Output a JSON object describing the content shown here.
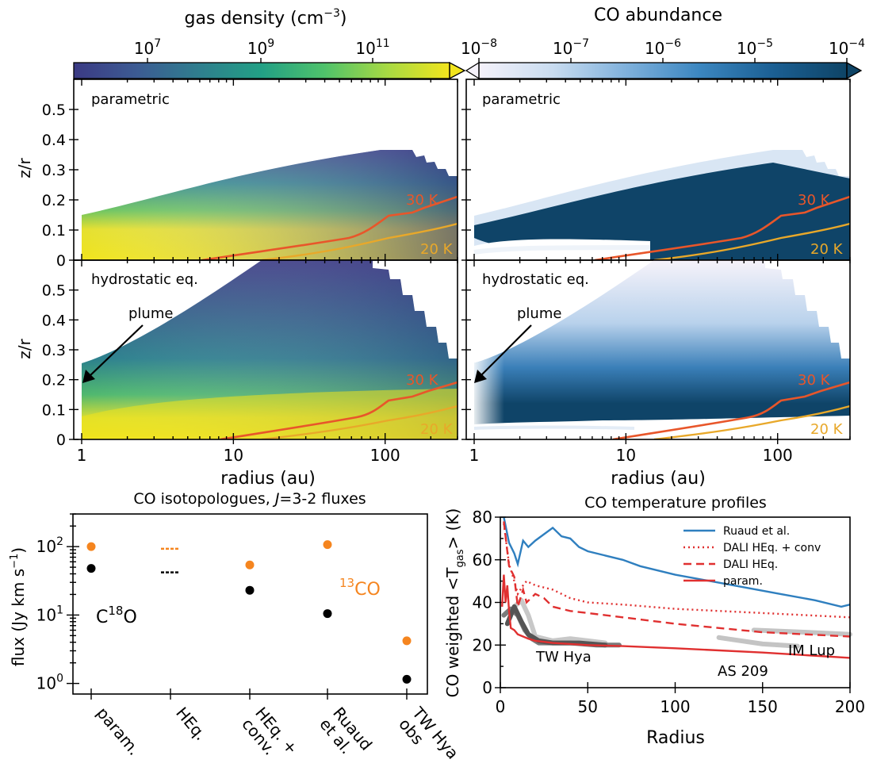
{
  "top_panels": {
    "colorbar_density": {
      "label": "gas density (cm",
      "label_sup": "−3",
      "label_close": ")",
      "ticks": [
        {
          "base": "10",
          "exp": "7"
        },
        {
          "base": "10",
          "exp": "9"
        },
        {
          "base": "10",
          "exp": "11"
        }
      ],
      "colormap": [
        "#3b3a84",
        "#3c5b93",
        "#2f7e8e",
        "#22a085",
        "#4fc26b",
        "#a7d943",
        "#f2e51d"
      ]
    },
    "colorbar_co": {
      "label": "CO abundance",
      "ticks": [
        {
          "base": "10",
          "exp": "−8"
        },
        {
          "base": "10",
          "exp": "−7"
        },
        {
          "base": "10",
          "exp": "−6"
        },
        {
          "base": "10",
          "exp": "−5"
        },
        {
          "base": "10",
          "exp": "−4"
        }
      ],
      "colormap": [
        "#f5f2fa",
        "#c9dcf0",
        "#7fb1dc",
        "#3b86c0",
        "#1b5f93",
        "#0e4466"
      ]
    },
    "panel_labels": [
      "parametric",
      "parametric",
      "hydrostatic eq.",
      "hydrostatic eq."
    ],
    "ylabel": "z/r",
    "xlabel": "radius (au)",
    "y_ticks": [
      "0",
      "0.1",
      "0.2",
      "0.3",
      "0.4",
      "0.5"
    ],
    "x_ticks": [
      "1",
      "10",
      "100"
    ],
    "contour_labels": [
      "30 K",
      "20 K"
    ],
    "annotation": "plume",
    "contour_colors": {
      "30 K": "#e8562a",
      "20 K": "#e8a82a"
    }
  },
  "chart_data": [
    {
      "type": "scatter",
      "title": "CO isotopologues, J=3-2 fluxes",
      "title_prefix": "CO isotopologues, ",
      "title_italic": "J",
      "title_suffix": "=3-2 fluxes",
      "ylabel": "flux (Jy km s",
      "ylabel_sup": "−1",
      "ylabel_close": ")",
      "yscale": "log",
      "ylim": [
        0.7,
        300
      ],
      "y_ticks": [
        {
          "base": "10",
          "exp": "0"
        },
        {
          "base": "10",
          "exp": "1"
        },
        {
          "base": "10",
          "exp": "2"
        }
      ],
      "categories": [
        "param.",
        "HEq.",
        "HEq.+\nconv.",
        "Ruaud\net al.",
        "TW Hya\nobs"
      ],
      "category_lines": [
        [
          "param."
        ],
        [
          "HEq."
        ],
        [
          "HEq. +",
          "conv."
        ],
        [
          "Ruaud",
          "et al."
        ],
        [
          "TW Hya",
          "obs"
        ]
      ],
      "series": [
        {
          "name": "13CO",
          "label_base": "CO",
          "label_sup": "13",
          "color": "#f5851f",
          "values": [
            100,
            93,
            54,
            107,
            4.2
          ]
        },
        {
          "name": "C18O",
          "label_base_pre": "C",
          "label_sup": "18",
          "label_base_post": "O",
          "color": "#000000",
          "values": [
            48,
            42,
            23,
            10.5,
            1.15
          ]
        }
      ]
    },
    {
      "type": "line",
      "title": "CO temperature profiles",
      "xlabel": "Radius",
      "ylabel": "CO weighted <T",
      "ylabel_sub": "gas",
      "ylabel_close": "> (K)",
      "xlim": [
        0,
        200
      ],
      "ylim": [
        0,
        80
      ],
      "x_ticks": [
        "0",
        "50",
        "100",
        "150",
        "200"
      ],
      "y_ticks": [
        "0",
        "20",
        "40",
        "60",
        "80"
      ],
      "legend_position": "top-right",
      "series": [
        {
          "name": "Ruaud et al.",
          "color": "#2f7fbf",
          "dash": "solid",
          "x": [
            2,
            5,
            8,
            10,
            13,
            16,
            20,
            25,
            30,
            35,
            40,
            45,
            50,
            60,
            70,
            80,
            90,
            100,
            120,
            140,
            160,
            180,
            195,
            200
          ],
          "y": [
            80,
            68,
            63,
            58,
            69,
            66,
            69,
            72,
            75,
            71,
            70,
            66,
            64,
            62,
            60,
            57,
            55,
            53,
            50,
            47,
            44,
            41,
            38,
            39
          ]
        },
        {
          "name": "DALI HEq. + conv",
          "color": "#e03030",
          "dash": "dotted",
          "x": [
            2,
            5,
            8,
            10,
            13,
            15,
            20,
            30,
            40,
            50,
            70,
            100,
            150,
            200
          ],
          "y": [
            77,
            58,
            50,
            44,
            48,
            50,
            48,
            46,
            42,
            40,
            39,
            37,
            35,
            33
          ]
        },
        {
          "name": "DALI HEq.",
          "color": "#e03030",
          "dash": "dashed",
          "x": [
            2,
            5,
            8,
            10,
            13,
            15,
            20,
            25,
            30,
            40,
            50,
            70,
            100,
            150,
            200
          ],
          "y": [
            78,
            57,
            52,
            38,
            46,
            40,
            44,
            42,
            38,
            36,
            35,
            33,
            30,
            26,
            24
          ]
        },
        {
          "name": "param.",
          "color": "#e03030",
          "dash": "solid",
          "x": [
            1,
            2,
            3,
            4,
            5,
            6,
            8,
            10,
            13,
            16,
            20,
            25,
            30,
            40,
            50,
            70,
            100,
            150,
            200
          ],
          "y": [
            38,
            53,
            40,
            48,
            36,
            28,
            27,
            25,
            24,
            23,
            22,
            21.5,
            21,
            20.5,
            20,
            19.5,
            18.5,
            16.5,
            14
          ]
        }
      ],
      "obs_labels": [
        "TW Hya",
        "AS 209",
        "IM Lup"
      ],
      "obs_series": [
        {
          "color": "#c8c8c8",
          "x": [
            8,
            12,
            16,
            20,
            30,
            40,
            50,
            60
          ],
          "y": [
            38,
            41,
            34,
            24,
            22,
            23,
            22,
            21
          ]
        },
        {
          "color": "#7a7a7a",
          "x": [
            2,
            6,
            10,
            14,
            18,
            22,
            30,
            40,
            55,
            68
          ],
          "y": [
            34,
            37,
            34,
            27,
            23,
            21,
            21,
            21,
            20,
            20
          ]
        },
        {
          "color": "#555555",
          "x": [
            4,
            8,
            12,
            16,
            22,
            30,
            45,
            60
          ],
          "y": [
            30,
            38,
            31,
            25,
            22,
            21,
            21,
            20
          ]
        },
        {
          "color": "#c4c4c4",
          "x": [
            125,
            150,
            160,
            170
          ],
          "y": [
            23.5,
            20.5,
            20,
            19.5
          ]
        },
        {
          "color": "#c4c4c4",
          "x": [
            145,
            175,
            200
          ],
          "y": [
            27,
            26,
            25
          ]
        }
      ]
    }
  ]
}
